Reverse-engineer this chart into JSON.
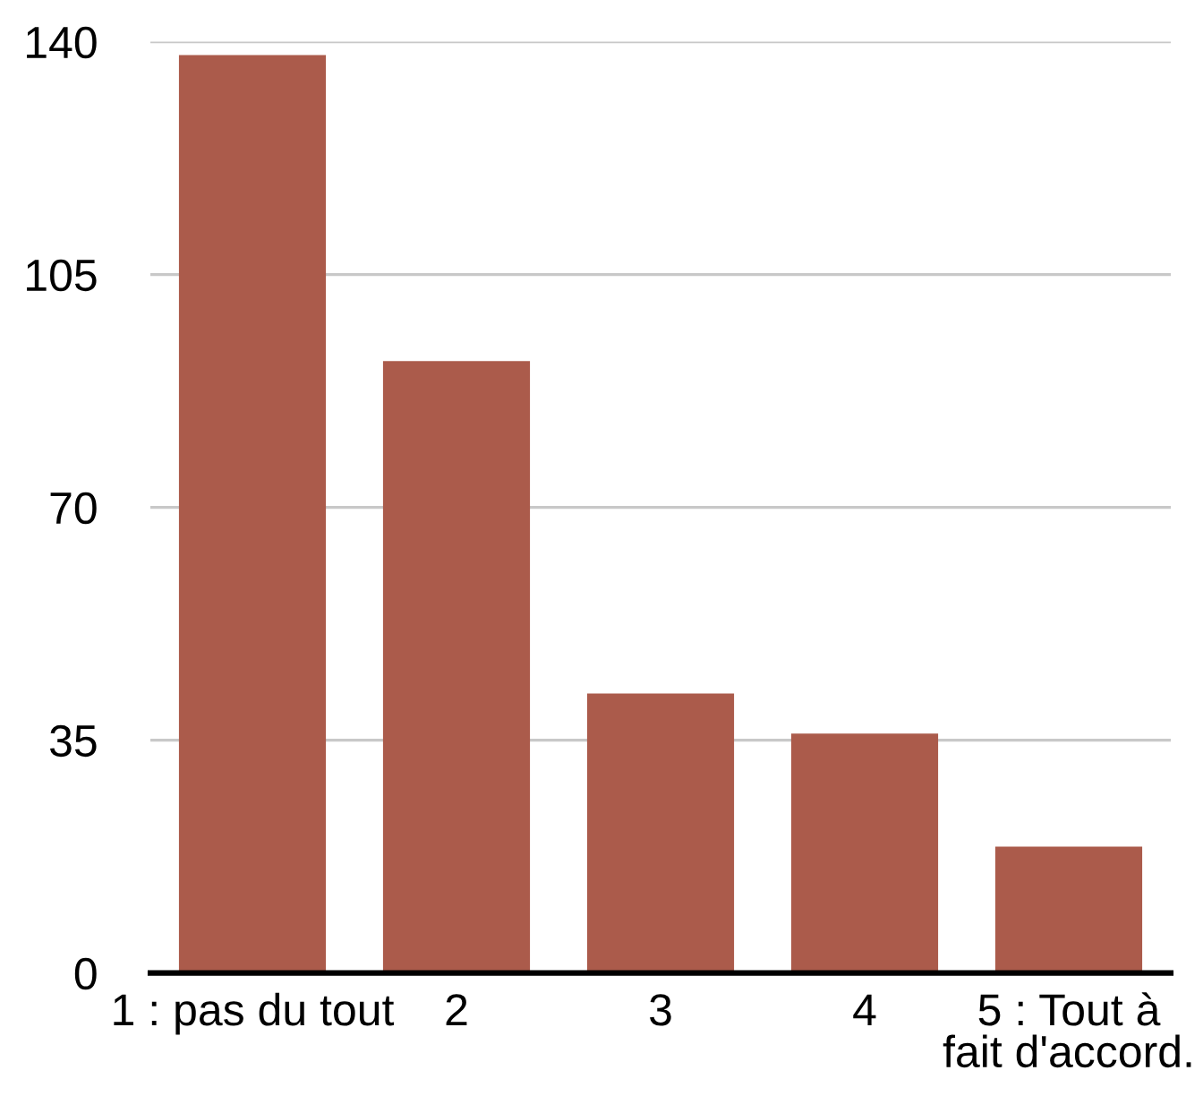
{
  "chart_data": {
    "type": "bar",
    "categories": [
      "1 : pas du tout",
      "2",
      "3",
      "4",
      "5 : Tout à\nfait d'accord."
    ],
    "values": [
      138,
      92,
      42,
      36,
      19
    ],
    "color": "#ab5b4b",
    "ylim": [
      0,
      140
    ],
    "yticks": [
      0,
      35,
      70,
      105,
      140
    ],
    "grid": "y"
  }
}
